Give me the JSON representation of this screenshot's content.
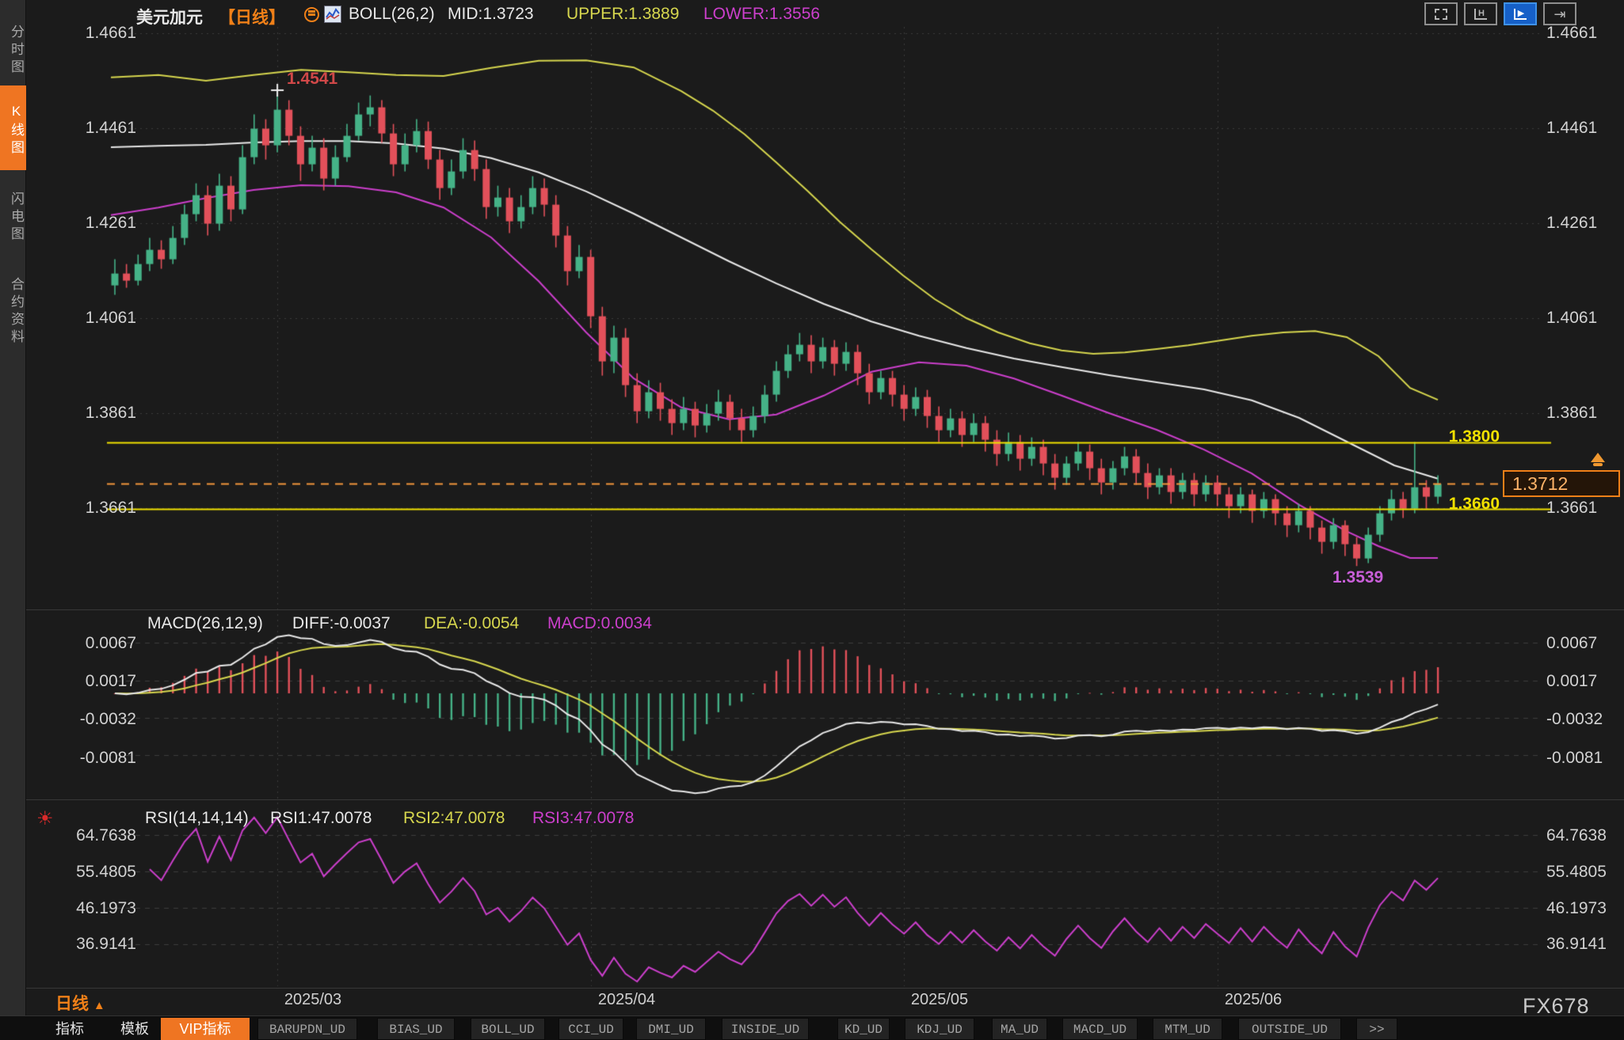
{
  "header": {
    "symbol": "美元加元",
    "period_tag": "【日线】",
    "boll_label": "BOLL(26,2)",
    "mid": "MID:1.3723",
    "upper": "UPPER:1.3889",
    "lower": "LOWER:1.3556"
  },
  "sidebar": {
    "items": [
      {
        "label": "分时图",
        "active": false
      },
      {
        "label": "K线图",
        "active": true
      },
      {
        "label": "闪电图",
        "active": false
      },
      {
        "label": "合约资料",
        "active": false
      }
    ]
  },
  "toolbar": {
    "fit_label": "H",
    "play_label": "▶",
    "goto_label": "⇥"
  },
  "annotations": {
    "high": "1.4541",
    "low": "1.3539",
    "resistance": "1.3800",
    "support": "1.3660",
    "last_price": "1.3712"
  },
  "macd_header": {
    "label": "MACD(26,12,9)",
    "diff": "DIFF:-0.0037",
    "dea": "DEA:-0.0054",
    "macd": "MACD:0.0034"
  },
  "rsi_header": {
    "label": "RSI(14,14,14)",
    "rsi1": "RSI1:47.0078",
    "rsi2": "RSI2:47.0078",
    "rsi3": "RSI3:47.0078"
  },
  "bottom": {
    "period": "日线",
    "period_arrow": "▲",
    "tabs": [
      "指标",
      "模板",
      "VIP指标",
      "BARUPDN_UD",
      "BIAS_UD",
      "BOLL_UD",
      "CCI_UD",
      "DMI_UD",
      "INSIDE_UD",
      "KD_UD",
      "KDJ_UD",
      "MA_UD",
      "MACD_UD",
      "MTM_UD",
      "OUTSIDE_UD",
      ">>"
    ]
  },
  "watermark": "FX678",
  "colors": {
    "up": "#45b287",
    "down": "#e2505a",
    "band_upper": "#d6d64e",
    "band_mid": "#e9e9e9",
    "band_lower": "#cc3fcc",
    "hline": "#f0e000",
    "last_price": "#f2953c",
    "accent": "#ef7522",
    "active_tool": "#1660c8"
  },
  "chart_data": {
    "type": "candlestick",
    "symbol": "美元加元",
    "period": "日线",
    "price_ticks": [
      "1.4661",
      "1.4461",
      "1.4261",
      "1.4061",
      "1.3861",
      "1.3661"
    ],
    "months": [
      {
        "i": 14,
        "label": "2025/03"
      },
      {
        "i": 41,
        "label": "2025/04"
      },
      {
        "i": 68,
        "label": "2025/05"
      },
      {
        "i": 95,
        "label": "2025/06"
      }
    ],
    "boll": {
      "mid": 1.3723,
      "upper": 1.3889,
      "lower": 1.3556
    },
    "hlines": [
      1.38,
      1.366
    ],
    "last_price": 1.3712,
    "high_marker": {
      "index": 14,
      "value": 1.4541
    },
    "low_marker": {
      "index": 107,
      "value": 1.3539
    },
    "macd": {
      "ticks": [
        "0.0067",
        "0.0017",
        "-0.0032",
        "-0.0081"
      ],
      "diff": -0.0037,
      "dea": -0.0054,
      "macd": 0.0034
    },
    "rsi": {
      "ticks": [
        "64.7638",
        "55.4805",
        "46.1973",
        "36.9141"
      ],
      "rsi1": 47.0078,
      "rsi2": 47.0078,
      "rsi3": 47.0078
    },
    "bands": {
      "upper": [
        [
          140,
          1.4568
        ],
        [
          200,
          1.4573
        ],
        [
          260,
          1.4561
        ],
        [
          320,
          1.4573
        ],
        [
          380,
          1.4584
        ],
        [
          440,
          1.4579
        ],
        [
          500,
          1.4573
        ],
        [
          560,
          1.4571
        ],
        [
          620,
          1.4588
        ],
        [
          680,
          1.4603
        ],
        [
          740,
          1.4604
        ],
        [
          800,
          1.4589
        ],
        [
          860,
          1.4539
        ],
        [
          900,
          1.4498
        ],
        [
          940,
          1.4448
        ],
        [
          980,
          1.4389
        ],
        [
          1020,
          1.4328
        ],
        [
          1060,
          1.4264
        ],
        [
          1100,
          1.4206
        ],
        [
          1140,
          1.4151
        ],
        [
          1180,
          1.4101
        ],
        [
          1220,
          1.4061
        ],
        [
          1260,
          1.4031
        ],
        [
          1300,
          1.4008
        ],
        [
          1340,
          1.3993
        ],
        [
          1380,
          1.3986
        ],
        [
          1420,
          1.3989
        ],
        [
          1460,
          1.3996
        ],
        [
          1500,
          1.4004
        ],
        [
          1540,
          1.4014
        ],
        [
          1580,
          1.4024
        ],
        [
          1620,
          1.4031
        ],
        [
          1660,
          1.4034
        ],
        [
          1700,
          1.4021
        ],
        [
          1740,
          1.3981
        ],
        [
          1780,
          1.3914
        ],
        [
          1815,
          1.3889
        ]
      ],
      "mid": [
        [
          140,
          1.4421
        ],
        [
          200,
          1.4424
        ],
        [
          260,
          1.4426
        ],
        [
          320,
          1.4431
        ],
        [
          380,
          1.4434
        ],
        [
          440,
          1.4434
        ],
        [
          500,
          1.4429
        ],
        [
          560,
          1.4418
        ],
        [
          620,
          1.4398
        ],
        [
          680,
          1.4368
        ],
        [
          740,
          1.4328
        ],
        [
          800,
          1.4281
        ],
        [
          860,
          1.4231
        ],
        [
          920,
          1.4181
        ],
        [
          980,
          1.4134
        ],
        [
          1040,
          1.4091
        ],
        [
          1100,
          1.4054
        ],
        [
          1160,
          1.4024
        ],
        [
          1220,
          1.3998
        ],
        [
          1280,
          1.3976
        ],
        [
          1340,
          1.3958
        ],
        [
          1400,
          1.3941
        ],
        [
          1460,
          1.3926
        ],
        [
          1520,
          1.3911
        ],
        [
          1580,
          1.3888
        ],
        [
          1640,
          1.3851
        ],
        [
          1700,
          1.3801
        ],
        [
          1760,
          1.3751
        ],
        [
          1815,
          1.3723
        ]
      ],
      "lower": [
        [
          140,
          1.4278
        ],
        [
          200,
          1.4294
        ],
        [
          260,
          1.4314
        ],
        [
          320,
          1.4331
        ],
        [
          380,
          1.4341
        ],
        [
          440,
          1.4339
        ],
        [
          500,
          1.4326
        ],
        [
          560,
          1.4294
        ],
        [
          620,
          1.4231
        ],
        [
          680,
          1.4139
        ],
        [
          740,
          1.4031
        ],
        [
          800,
          1.3934
        ],
        [
          860,
          1.3873
        ],
        [
          920,
          1.3848
        ],
        [
          980,
          1.3858
        ],
        [
          1040,
          1.3898
        ],
        [
          1100,
          1.3948
        ],
        [
          1160,
          1.3968
        ],
        [
          1220,
          1.3961
        ],
        [
          1280,
          1.3934
        ],
        [
          1340,
          1.3898
        ],
        [
          1400,
          1.3861
        ],
        [
          1460,
          1.3826
        ],
        [
          1520,
          1.3784
        ],
        [
          1580,
          1.3734
        ],
        [
          1640,
          1.3668
        ],
        [
          1700,
          1.3612
        ],
        [
          1740,
          1.3581
        ],
        [
          1780,
          1.3556
        ],
        [
          1815,
          1.3556
        ]
      ]
    },
    "candles": [
      [
        1.413,
        1.4185,
        1.411,
        1.4155
      ],
      [
        1.4155,
        1.4175,
        1.4125,
        1.414
      ],
      [
        1.414,
        1.4195,
        1.413,
        1.4175
      ],
      [
        1.4175,
        1.423,
        1.416,
        1.4205
      ],
      [
        1.4205,
        1.4225,
        1.4165,
        1.4185
      ],
      [
        1.4185,
        1.4255,
        1.4175,
        1.423
      ],
      [
        1.423,
        1.43,
        1.4215,
        1.428
      ],
      [
        1.428,
        1.4345,
        1.4265,
        1.432
      ],
      [
        1.432,
        1.434,
        1.4235,
        1.426
      ],
      [
        1.426,
        1.4365,
        1.4245,
        1.434
      ],
      [
        1.434,
        1.436,
        1.4265,
        1.429
      ],
      [
        1.429,
        1.4425,
        1.428,
        1.44
      ],
      [
        1.44,
        1.449,
        1.4385,
        1.446
      ],
      [
        1.446,
        1.448,
        1.4395,
        1.4425
      ],
      [
        1.4425,
        1.4541,
        1.441,
        1.45
      ],
      [
        1.45,
        1.452,
        1.4425,
        1.4445
      ],
      [
        1.4445,
        1.4465,
        1.435,
        1.4385
      ],
      [
        1.4385,
        1.4445,
        1.437,
        1.442
      ],
      [
        1.442,
        1.444,
        1.433,
        1.4355
      ],
      [
        1.4355,
        1.4425,
        1.434,
        1.44
      ],
      [
        1.44,
        1.447,
        1.439,
        1.4445
      ],
      [
        1.4445,
        1.4515,
        1.4435,
        1.449
      ],
      [
        1.449,
        1.453,
        1.4465,
        1.4505
      ],
      [
        1.4505,
        1.452,
        1.443,
        1.445
      ],
      [
        1.445,
        1.447,
        1.436,
        1.4385
      ],
      [
        1.4385,
        1.445,
        1.437,
        1.4425
      ],
      [
        1.4425,
        1.448,
        1.441,
        1.4455
      ],
      [
        1.4455,
        1.4475,
        1.4375,
        1.4395
      ],
      [
        1.4395,
        1.4415,
        1.431,
        1.4335
      ],
      [
        1.4335,
        1.4395,
        1.432,
        1.437
      ],
      [
        1.437,
        1.444,
        1.4355,
        1.4415
      ],
      [
        1.4415,
        1.4435,
        1.435,
        1.4375
      ],
      [
        1.4375,
        1.4395,
        1.427,
        1.4295
      ],
      [
        1.4295,
        1.434,
        1.4275,
        1.4315
      ],
      [
        1.4315,
        1.4335,
        1.424,
        1.4265
      ],
      [
        1.4265,
        1.432,
        1.425,
        1.4295
      ],
      [
        1.4295,
        1.436,
        1.428,
        1.4335
      ],
      [
        1.4335,
        1.4355,
        1.4275,
        1.43
      ],
      [
        1.43,
        1.432,
        1.421,
        1.4235
      ],
      [
        1.4235,
        1.4255,
        1.413,
        1.416
      ],
      [
        1.416,
        1.4215,
        1.4145,
        1.419
      ],
      [
        1.419,
        1.4205,
        1.404,
        1.4065
      ],
      [
        1.4065,
        1.4085,
        1.394,
        1.397
      ],
      [
        1.397,
        1.4045,
        1.3945,
        1.402
      ],
      [
        1.402,
        1.404,
        1.3895,
        1.392
      ],
      [
        1.392,
        1.3945,
        1.384,
        1.3865
      ],
      [
        1.3865,
        1.393,
        1.385,
        1.3905
      ],
      [
        1.3905,
        1.3925,
        1.3845,
        1.387
      ],
      [
        1.387,
        1.389,
        1.3815,
        1.384
      ],
      [
        1.384,
        1.3895,
        1.3825,
        1.387
      ],
      [
        1.387,
        1.3885,
        1.381,
        1.3835
      ],
      [
        1.3835,
        1.388,
        1.382,
        1.386
      ],
      [
        1.386,
        1.391,
        1.3845,
        1.3885
      ],
      [
        1.3885,
        1.39,
        1.3825,
        1.385
      ],
      [
        1.385,
        1.387,
        1.38,
        1.3825
      ],
      [
        1.3825,
        1.3875,
        1.381,
        1.3855
      ],
      [
        1.3855,
        1.392,
        1.384,
        1.39
      ],
      [
        1.39,
        1.397,
        1.3885,
        1.395
      ],
      [
        1.395,
        1.4005,
        1.3935,
        1.3985
      ],
      [
        1.3985,
        1.403,
        1.397,
        1.4005
      ],
      [
        1.4005,
        1.4025,
        1.3945,
        1.397
      ],
      [
        1.397,
        1.402,
        1.3955,
        1.4
      ],
      [
        1.4,
        1.4015,
        1.394,
        1.3965
      ],
      [
        1.3965,
        1.401,
        1.395,
        1.399
      ],
      [
        1.399,
        1.4005,
        1.392,
        1.3945
      ],
      [
        1.3945,
        1.3965,
        1.388,
        1.3905
      ],
      [
        1.3905,
        1.395,
        1.389,
        1.3935
      ],
      [
        1.3935,
        1.395,
        1.3875,
        1.39
      ],
      [
        1.39,
        1.392,
        1.3845,
        1.387
      ],
      [
        1.387,
        1.3915,
        1.3855,
        1.3895
      ],
      [
        1.3895,
        1.391,
        1.383,
        1.3855
      ],
      [
        1.3855,
        1.3875,
        1.38,
        1.3825
      ],
      [
        1.3825,
        1.387,
        1.381,
        1.385
      ],
      [
        1.385,
        1.3865,
        1.379,
        1.3815
      ],
      [
        1.3815,
        1.386,
        1.38,
        1.384
      ],
      [
        1.384,
        1.3855,
        1.378,
        1.3805
      ],
      [
        1.3805,
        1.3825,
        1.375,
        1.3775
      ],
      [
        1.3775,
        1.382,
        1.376,
        1.38
      ],
      [
        1.38,
        1.3815,
        1.374,
        1.3765
      ],
      [
        1.3765,
        1.381,
        1.375,
        1.379
      ],
      [
        1.379,
        1.3805,
        1.373,
        1.3755
      ],
      [
        1.3755,
        1.3775,
        1.37,
        1.3725
      ],
      [
        1.3725,
        1.377,
        1.371,
        1.3755
      ],
      [
        1.3755,
        1.38,
        1.374,
        1.378
      ],
      [
        1.378,
        1.3795,
        1.372,
        1.3745
      ],
      [
        1.3745,
        1.3765,
        1.369,
        1.3715
      ],
      [
        1.3715,
        1.376,
        1.37,
        1.3745
      ],
      [
        1.3745,
        1.379,
        1.373,
        1.377
      ],
      [
        1.377,
        1.3785,
        1.371,
        1.3735
      ],
      [
        1.3735,
        1.3755,
        1.368,
        1.3705
      ],
      [
        1.3705,
        1.3745,
        1.369,
        1.373
      ],
      [
        1.373,
        1.3745,
        1.367,
        1.3695
      ],
      [
        1.3695,
        1.3735,
        1.368,
        1.372
      ],
      [
        1.372,
        1.3735,
        1.3665,
        1.369
      ],
      [
        1.369,
        1.373,
        1.3675,
        1.3715
      ],
      [
        1.3715,
        1.373,
        1.3665,
        1.369
      ],
      [
        1.369,
        1.3705,
        1.364,
        1.3665
      ],
      [
        1.3665,
        1.3705,
        1.365,
        1.369
      ],
      [
        1.369,
        1.37,
        1.363,
        1.3655
      ],
      [
        1.3655,
        1.3695,
        1.364,
        1.368
      ],
      [
        1.368,
        1.369,
        1.3625,
        1.365
      ],
      [
        1.365,
        1.3665,
        1.36,
        1.3625
      ],
      [
        1.3625,
        1.367,
        1.361,
        1.3655
      ],
      [
        1.3655,
        1.3665,
        1.3595,
        1.362
      ],
      [
        1.362,
        1.3635,
        1.3565,
        1.359
      ],
      [
        1.359,
        1.364,
        1.3575,
        1.3625
      ],
      [
        1.3625,
        1.3635,
        1.356,
        1.3585
      ],
      [
        1.3585,
        1.36,
        1.3539,
        1.3555
      ],
      [
        1.3555,
        1.362,
        1.3545,
        1.3605
      ],
      [
        1.3605,
        1.3665,
        1.359,
        1.365
      ],
      [
        1.365,
        1.37,
        1.3635,
        1.368
      ],
      [
        1.368,
        1.3695,
        1.364,
        1.366
      ],
      [
        1.366,
        1.38,
        1.365,
        1.3705
      ],
      [
        1.3705,
        1.372,
        1.366,
        1.3685
      ],
      [
        1.3685,
        1.373,
        1.367,
        1.3712
      ]
    ]
  }
}
